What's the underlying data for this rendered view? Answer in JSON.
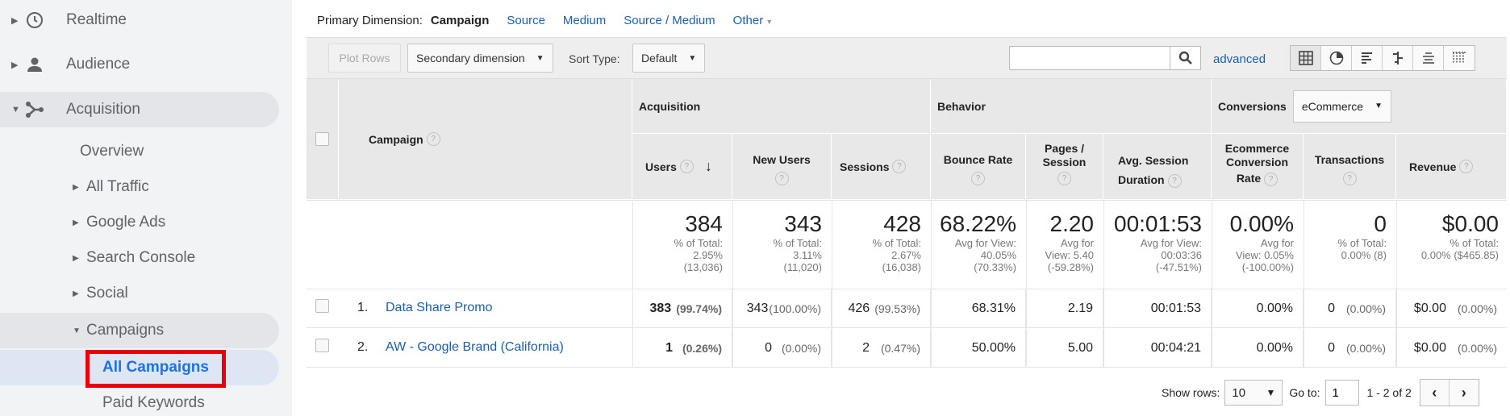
{
  "sidebar": {
    "realtime": "Realtime",
    "audience": "Audience",
    "acquisition": "Acquisition",
    "overview": "Overview",
    "all_traffic": "All Traffic",
    "google_ads": "Google Ads",
    "search_console": "Search Console",
    "social": "Social",
    "campaigns": "Campaigns",
    "all_campaigns": "All Campaigns",
    "paid_keywords": "Paid Keywords"
  },
  "dimensions": {
    "label": "Primary Dimension:",
    "current": "Campaign",
    "options": [
      "Source",
      "Medium",
      "Source / Medium",
      "Other"
    ]
  },
  "toolbar": {
    "plot_rows": "Plot Rows",
    "secondary_dimension": "Secondary dimension",
    "sort_type_label": "Sort Type:",
    "sort_type_value": "Default",
    "search_placeholder": "",
    "advanced": "advanced"
  },
  "table": {
    "campaign_header": "Campaign",
    "groups": {
      "acquisition": "Acquisition",
      "behavior": "Behavior",
      "conversions": "Conversions",
      "conversions_select": "eCommerce"
    },
    "columns": {
      "users": "Users",
      "new_users": "New Users",
      "sessions": "Sessions",
      "bounce_rate": "Bounce Rate",
      "pages_session_1": "Pages /",
      "pages_session_2": "Session",
      "avg_duration_1": "Avg. Session",
      "avg_duration_2": "Duration",
      "ecom_rate_1": "Ecommerce",
      "ecom_rate_2": "Conversion",
      "ecom_rate_3": "Rate",
      "transactions": "Transactions",
      "revenue": "Revenue"
    },
    "totals": {
      "users": {
        "value": "384",
        "l1": "% of Total:",
        "l2": "2.95%",
        "l3": "(13,036)"
      },
      "new_users": {
        "value": "343",
        "l1": "% of Total:",
        "l2": "3.11%",
        "l3": "(11,020)"
      },
      "sessions": {
        "value": "428",
        "l1": "% of Total:",
        "l2": "2.67%",
        "l3": "(16,038)"
      },
      "bounce_rate": {
        "value": "68.22%",
        "l1": "Avg for View:",
        "l2": "40.05%",
        "l3": "(70.33%)"
      },
      "pages_session": {
        "value": "2.20",
        "l1": "Avg for",
        "l2": "View: 5.40",
        "l3": "(-59.28%)"
      },
      "avg_duration": {
        "value": "00:01:53",
        "l1": "Avg for View:",
        "l2": "00:03:36",
        "l3": "(-47.51%)"
      },
      "ecom_rate": {
        "value": "0.00%",
        "l1": "Avg for",
        "l2": "View: 0.05%",
        "l3": "(-100.00%)"
      },
      "transactions": {
        "value": "0",
        "l1": "% of Total:",
        "l2": "0.00% (8)"
      },
      "revenue": {
        "value": "$0.00",
        "l1": "% of Total:",
        "l2": "0.00% ($465.85)"
      }
    },
    "rows": [
      {
        "index": "1.",
        "campaign": "Data Share Promo",
        "users": "383",
        "users_pct": "(99.74%)",
        "new_users": "343",
        "new_users_pct": "(100.00%)",
        "sessions": "426",
        "sessions_pct": "(99.53%)",
        "bounce_rate": "68.31%",
        "pages_session": "2.19",
        "avg_duration": "00:01:53",
        "ecom_rate": "0.00%",
        "transactions": "0",
        "transactions_pct": "(0.00%)",
        "revenue": "$0.00",
        "revenue_pct": "(0.00%)"
      },
      {
        "index": "2.",
        "campaign": "AW - Google Brand (California)",
        "users": "1",
        "users_pct": "(0.26%)",
        "new_users": "0",
        "new_users_pct": "(0.00%)",
        "sessions": "2",
        "sessions_pct": "(0.47%)",
        "bounce_rate": "50.00%",
        "pages_session": "5.00",
        "avg_duration": "00:04:21",
        "ecom_rate": "0.00%",
        "transactions": "0",
        "transactions_pct": "(0.00%)",
        "revenue": "$0.00",
        "revenue_pct": "(0.00%)"
      }
    ]
  },
  "footer": {
    "show_rows_label": "Show rows:",
    "show_rows_value": "10",
    "goto_label": "Go to:",
    "goto_value": "1",
    "range": "1 - 2 of 2"
  },
  "colors": {
    "link": "#1a5fb4",
    "highlight": "#e8000b",
    "sidebar_bg": "#f1f3f4"
  }
}
